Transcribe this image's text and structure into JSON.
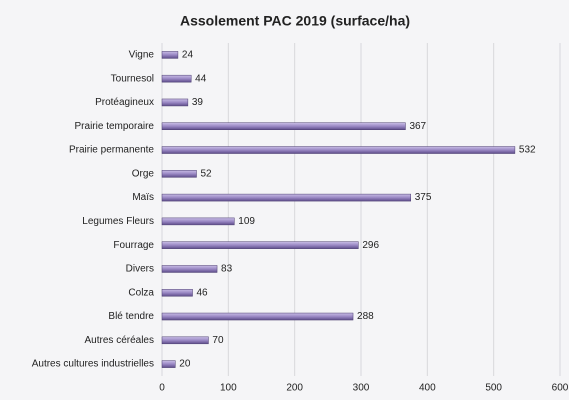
{
  "chart_data": {
    "type": "hbar",
    "title": "Assolement PAC 2019 (surface/ha)",
    "categories": [
      "Vigne",
      "Tournesol",
      "Protéagineux",
      "Prairie temporaire",
      "Prairie permanente",
      "Orge",
      "Maïs",
      "Legumes Fleurs",
      "Fourrage",
      "Divers",
      "Colza",
      "Blé tendre",
      "Autres céréales",
      "Autres cultures industrielles"
    ],
    "values": [
      24,
      44,
      39,
      367,
      532,
      52,
      375,
      109,
      296,
      83,
      46,
      288,
      70,
      20
    ],
    "color": "#9a88c4",
    "xlim": [
      0,
      600
    ],
    "xticks": [
      0,
      100,
      200,
      300,
      400,
      500,
      600
    ],
    "grid": true
  }
}
